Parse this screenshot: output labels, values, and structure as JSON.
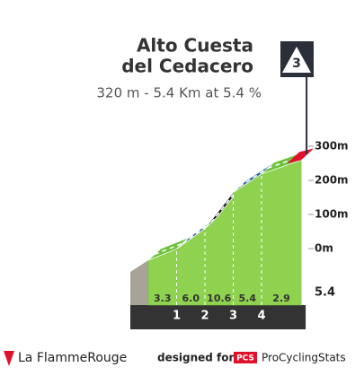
{
  "chart_data": {
    "type": "profile",
    "title": [
      "Alto Cuesta",
      "del Cedacero"
    ],
    "subtitle": "320 m - 5.4 Km at 5.4 %",
    "category": 3,
    "km_markers": [
      1,
      2,
      3,
      4
    ],
    "distance": 5.4,
    "values": [
      3.3,
      6.0,
      10.6,
      5.4,
      2.9
    ],
    "value_labels": [
      "3.3",
      "6.0",
      "10.6",
      "5.4",
      "2.9"
    ],
    "colors": [
      "#6cc23a",
      "#2c6aa1",
      "#141414",
      "#2c6aa1",
      "#6cc23a"
    ],
    "summit_color": "#e0112b",
    "ylim": [
      0,
      300
    ],
    "yticks": [
      {
        "value": 0,
        "label": "0m"
      },
      {
        "value": 100,
        "label": "100m"
      },
      {
        "value": 200,
        "label": "200m"
      },
      {
        "value": 300,
        "label": "300m"
      }
    ]
  },
  "footer": {
    "brand": "La FlammeRouge",
    "designed_for": "designed for",
    "pcs": "PCS",
    "site": "ProCyclingStats"
  }
}
